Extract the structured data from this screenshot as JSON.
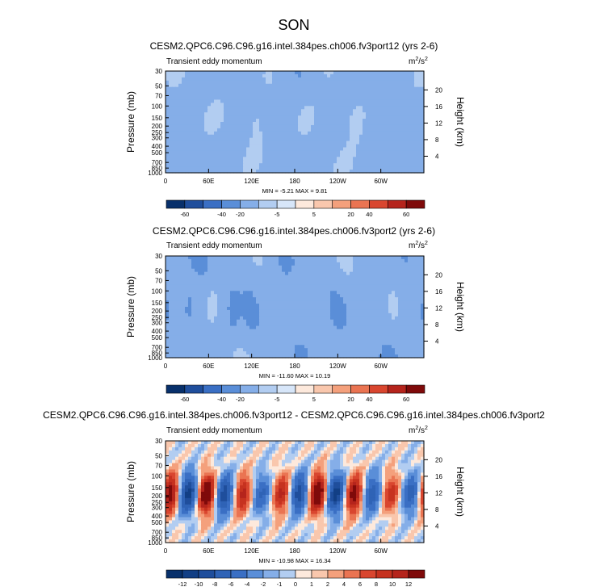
{
  "page": {
    "title": "SON"
  },
  "colors": {
    "frame": "#000000",
    "background": "#ffffff"
  },
  "chart_data": [
    {
      "type": "heatmap",
      "title": "CESM2.QPC6.C96.C96.g16.intel.384pes.ch006.fv3port12 (yrs 2-6)",
      "subtitle_left": "Transient eddy momentum",
      "units": "m²/s²",
      "units_base": "m",
      "units_base2": "/s",
      "units_sup": "2",
      "ylabel": "Pressure (mb)",
      "ylabel_right": "Height (km)",
      "yticks": [
        "30",
        "50",
        "70",
        "100",
        "150",
        "200",
        "250",
        "300",
        "400",
        "500",
        "700",
        "850",
        "1000"
      ],
      "yticks_right": [
        "20",
        "16",
        "12",
        "8",
        "4"
      ],
      "xticks": [
        "0",
        "60E",
        "120E",
        "180",
        "120W",
        "60W"
      ],
      "stats": "MIN = -5.21  MAX =  9.81",
      "min": -5.21,
      "max": 9.81,
      "colorbar": {
        "levels": [
          "-60",
          "-40",
          "-20",
          "-5",
          "5",
          "20",
          "40",
          "60"
        ],
        "colors": [
          "#08306b",
          "#1f4e9c",
          "#3a6fc4",
          "#5a8ed8",
          "#85aee8",
          "#b2cdf1",
          "#d7e6f9",
          "#fde9dc",
          "#f9c7ad",
          "#f4a07c",
          "#ea7452",
          "#d9462f",
          "#b5241c",
          "#7f0a0a"
        ]
      }
    },
    {
      "type": "heatmap",
      "title": "CESM2.QPC6.C96.C96.g16.intel.384pes.ch006.fv3port2 (yrs 2-6)",
      "subtitle_left": "Transient eddy momentum",
      "units": "m²/s²",
      "units_base": "m",
      "units_base2": "/s",
      "units_sup": "2",
      "ylabel": "Pressure (mb)",
      "ylabel_right": "Height (km)",
      "yticks": [
        "30",
        "50",
        "70",
        "100",
        "150",
        "200",
        "250",
        "300",
        "400",
        "500",
        "700",
        "850",
        "1000"
      ],
      "yticks_right": [
        "20",
        "16",
        "12",
        "8",
        "4"
      ],
      "xticks": [
        "0",
        "60E",
        "120E",
        "180",
        "120W",
        "60W"
      ],
      "stats": "MIN = -11.60  MAX =  10.19",
      "min": -11.6,
      "max": 10.19,
      "colorbar": {
        "levels": [
          "-60",
          "-40",
          "-20",
          "-5",
          "5",
          "20",
          "40",
          "60"
        ],
        "colors": [
          "#08306b",
          "#1f4e9c",
          "#3a6fc4",
          "#5a8ed8",
          "#85aee8",
          "#b2cdf1",
          "#d7e6f9",
          "#fde9dc",
          "#f9c7ad",
          "#f4a07c",
          "#ea7452",
          "#d9462f",
          "#b5241c",
          "#7f0a0a"
        ]
      }
    },
    {
      "type": "heatmap",
      "title": "CESM2.QPC6.C96.C96.g16.intel.384pes.ch006.fv3port12 - CESM2.QPC6.C96.C96.g16.intel.384pes.ch006.fv3port2",
      "subtitle_left": "Transient eddy momentum",
      "units": "m²/s²",
      "units_base": "m",
      "units_base2": "/s",
      "units_sup": "2",
      "ylabel": "Pressure (mb)",
      "ylabel_right": "Height (km)",
      "yticks": [
        "30",
        "50",
        "70",
        "100",
        "150",
        "200",
        "250",
        "300",
        "400",
        "500",
        "700",
        "850",
        "1000"
      ],
      "yticks_right": [
        "20",
        "16",
        "12",
        "8",
        "4"
      ],
      "xticks": [
        "0",
        "60E",
        "120E",
        "180",
        "120W",
        "60W"
      ],
      "stats": "MIN = -10.98  MAX =  16.34",
      "min": -10.98,
      "max": 16.34,
      "colorbar": {
        "levels": [
          "-12",
          "-10",
          "-8",
          "-6",
          "-4",
          "-2",
          "-1",
          "0",
          "1",
          "2",
          "4",
          "6",
          "8",
          "10",
          "12"
        ],
        "colors": [
          "#08306b",
          "#123f85",
          "#1f4e9c",
          "#2f63b6",
          "#3a6fc4",
          "#5a8ed8",
          "#85aee8",
          "#b2cdf1",
          "#fde9dc",
          "#f9c7ad",
          "#f4a07c",
          "#ea7452",
          "#d9462f",
          "#c6321f",
          "#b5241c",
          "#7f0a0a"
        ]
      }
    }
  ]
}
